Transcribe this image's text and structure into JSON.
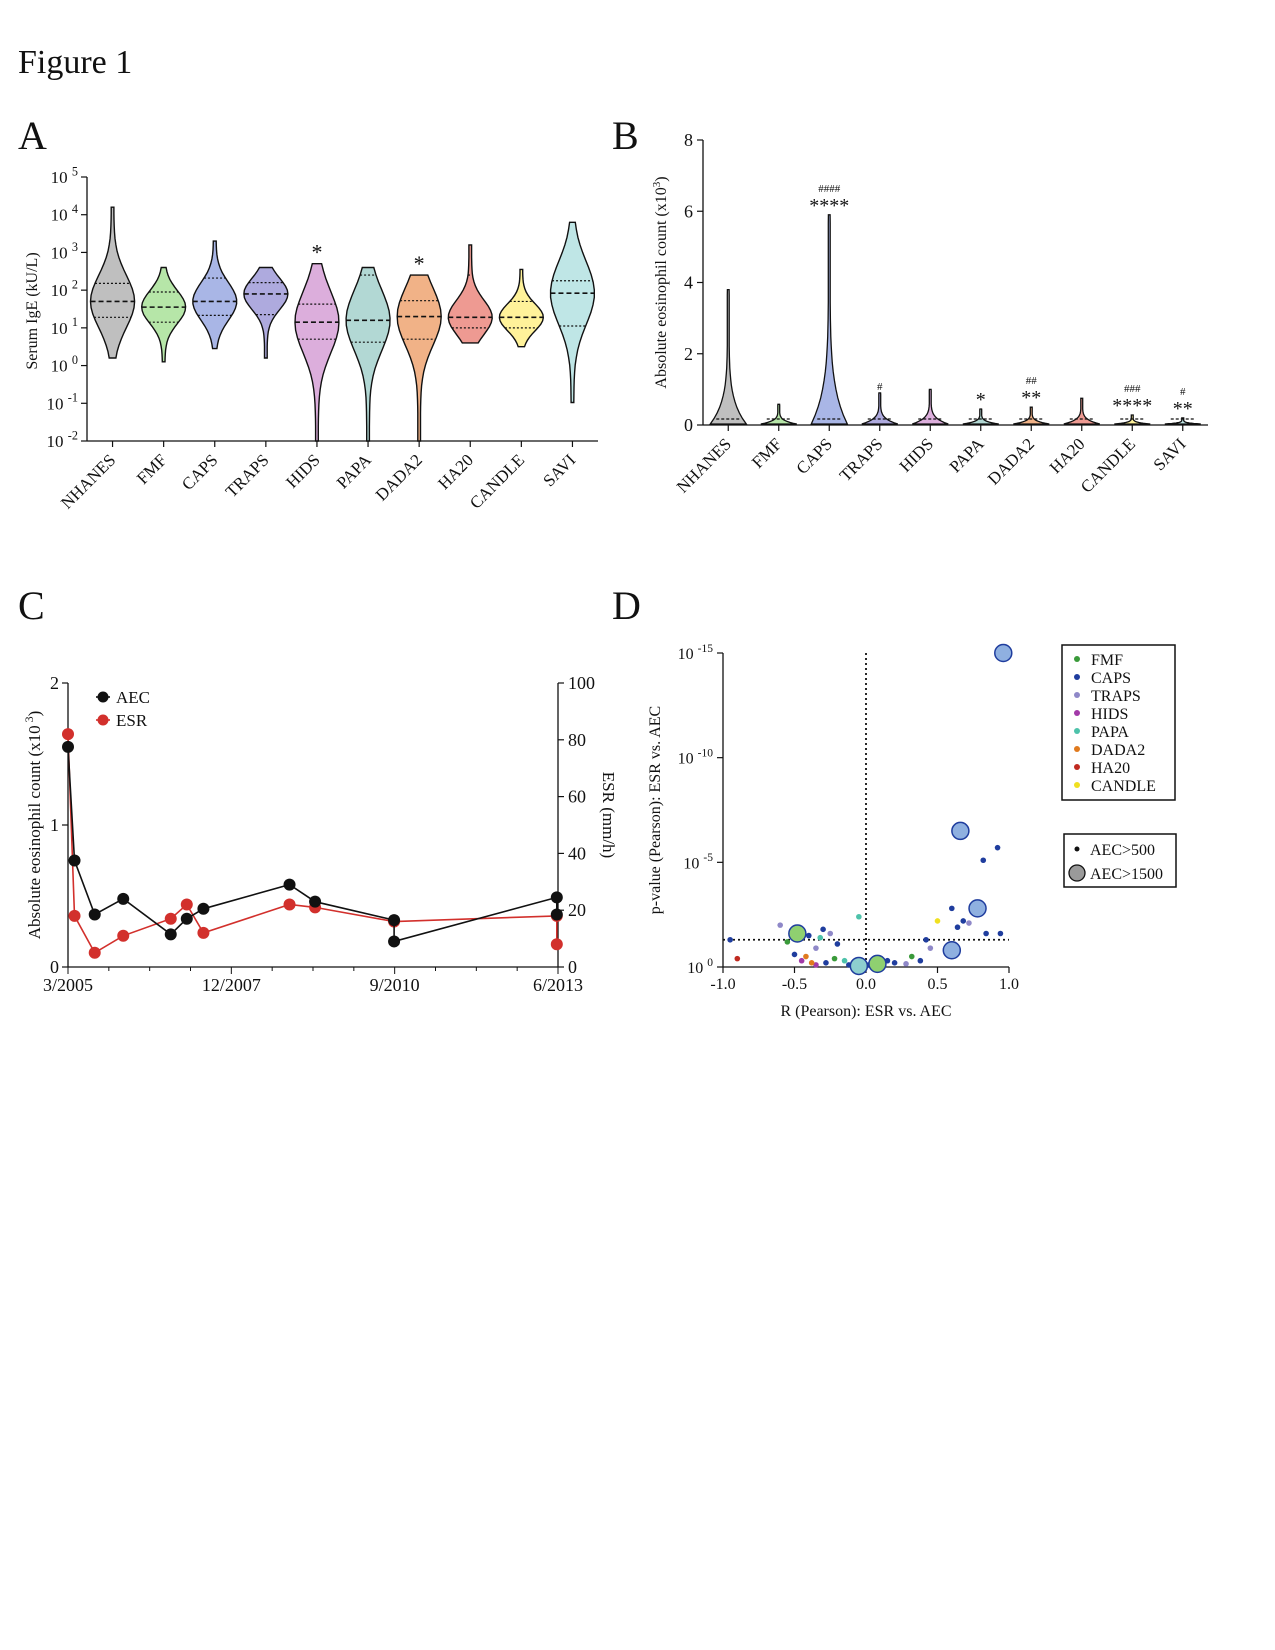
{
  "figure_title": "Figure 1",
  "panel_labels": {
    "a": "A",
    "b": "B",
    "c": "C",
    "d": "D"
  },
  "colors": {
    "groups": [
      "#bfbfbf",
      "#b6e6a8",
      "#a9b6e6",
      "#aeaade",
      "#dcaedc",
      "#b2d8d4",
      "#f1b287",
      "#ee9a92",
      "#fff29a",
      "#bfe6e6"
    ],
    "aec_line": "#111111",
    "esr_line": "#d2302c",
    "legend_dots": [
      "#3a9a3a",
      "#1f3d9e",
      "#8f88c8",
      "#a23aa8",
      "#4dc2aa",
      "#e07a1e",
      "#c02a20",
      "#f0e020"
    ],
    "big_marker_fill": "#8fb0e0"
  },
  "chart_data": [
    {
      "panel": "A",
      "type": "violin",
      "ylabel": "Serum IgE (kU/L)",
      "yscale": "log",
      "yticks": [
        {
          "base": "10",
          "exp": "5"
        },
        {
          "base": "10",
          "exp": "4"
        },
        {
          "base": "10",
          "exp": "3"
        },
        {
          "base": "10",
          "exp": "2"
        },
        {
          "base": "10",
          "exp": "1"
        },
        {
          "base": "10",
          "exp": "0"
        },
        {
          "base": "10",
          "exp": "-1"
        },
        {
          "base": "10",
          "exp": "-2"
        }
      ],
      "ylim_log10": [
        -2,
        5
      ],
      "categories": [
        "NHANES",
        "FMF",
        "CAPS",
        "TRAPS",
        "HIDS",
        "PAPA",
        "DADA2",
        "HA20",
        "CANDLE",
        "SAVI"
      ],
      "log10_min": [
        0.2,
        0.1,
        0.45,
        0.2,
        -2,
        -2,
        -2,
        0.6,
        0.5,
        -0.98
      ],
      "log10_max": [
        4.2,
        2.6,
        3.3,
        2.6,
        2.7,
        2.6,
        2.4,
        3.2,
        2.55,
        3.8
      ],
      "log10_q1": [
        1.28,
        1.15,
        1.33,
        1.35,
        0.7,
        0.62,
        0.7,
        1.0,
        1.0,
        1.05
      ],
      "log10_median": [
        1.7,
        1.55,
        1.7,
        1.9,
        1.15,
        1.2,
        1.3,
        1.28,
        1.28,
        1.92
      ],
      "log10_q3": [
        2.18,
        1.95,
        2.32,
        2.2,
        1.63,
        2.4,
        1.72,
        2.4,
        1.7,
        2.25
      ],
      "significance": [
        "",
        "",
        "",
        "",
        "*",
        "",
        "*",
        "",
        "",
        ""
      ]
    },
    {
      "panel": "B",
      "type": "violin",
      "ylabel": "Absolute eosinophil count (x10",
      "ylabel_sup": "3",
      "ylabel_close": ")",
      "yticks": [
        0,
        2,
        4,
        6,
        8
      ],
      "ylim": [
        0,
        8
      ],
      "categories": [
        "NHANES",
        "FMF",
        "CAPS",
        "TRAPS",
        "HIDS",
        "PAPA",
        "DADA2",
        "HA20",
        "CANDLE",
        "SAVI"
      ],
      "max": [
        3.8,
        0.58,
        5.9,
        0.9,
        1.0,
        0.45,
        0.5,
        0.75,
        0.28,
        0.2
      ],
      "significance_star": [
        "",
        "",
        "****",
        "",
        "",
        "*",
        "**",
        "",
        "****",
        "**"
      ],
      "significance_hash": [
        "",
        "",
        "####",
        "#",
        "",
        "",
        "##",
        "",
        "###",
        "#"
      ]
    },
    {
      "panel": "C",
      "type": "line",
      "ylabel_left": "Absolute eosinophil count (x10",
      "ylabel_left_sup": "3",
      "ylabel_left_close": ")",
      "ylabel_right": "ESR (mm/h)",
      "yticks_left": [
        0,
        1,
        2
      ],
      "yticks_right": [
        0,
        20,
        40,
        60,
        80,
        100
      ],
      "ylim_left": [
        0,
        2
      ],
      "ylim_right": [
        0,
        100
      ],
      "x_ticklabels": [
        "3/2005",
        "12/2007",
        "9/2010",
        "6/2013"
      ],
      "x_tick_years": [
        2005.17,
        2007.92,
        2010.67,
        2013.42
      ],
      "xlim_years": [
        2005.17,
        2013.42
      ],
      "series": [
        {
          "name": "AEC",
          "x": [
            2005.17,
            2005.28,
            2005.62,
            2006.1,
            2006.9,
            2007.17,
            2007.45,
            2008.9,
            2009.33,
            2010.66,
            2010.66,
            2013.4,
            2013.4
          ],
          "y": [
            1.55,
            0.75,
            0.37,
            0.48,
            0.23,
            0.34,
            0.41,
            0.58,
            0.46,
            0.33,
            0.18,
            0.49,
            0.37
          ]
        },
        {
          "name": "ESR",
          "x": [
            2005.17,
            2005.28,
            2005.62,
            2006.1,
            2006.9,
            2007.17,
            2007.45,
            2008.9,
            2009.33,
            2010.66,
            2013.4,
            2013.4
          ],
          "y": [
            82,
            18,
            5,
            11,
            17,
            22,
            12,
            22,
            21,
            16,
            18,
            8
          ]
        }
      ]
    },
    {
      "panel": "D",
      "type": "scatter",
      "xlabel": "R (Pearson): ESR vs. AEC",
      "ylabel": "p-value (Pearson): ESR vs. AEC",
      "xticks": [
        "-1.0",
        "-0.5",
        "0.0",
        "0.5",
        "1.0"
      ],
      "xtick_values": [
        -1,
        -0.5,
        0,
        0.5,
        1
      ],
      "yticks": [
        {
          "base": "10",
          "exp": "-15",
          "value": 15
        },
        {
          "base": "10",
          "exp": "-10",
          "value": 10
        },
        {
          "base": "10",
          "exp": "-5",
          "value": 5
        },
        {
          "base": "10",
          "exp": "0",
          "value": 0
        }
      ],
      "xlim": [
        -1,
        1
      ],
      "ylim_neglog10p": [
        0,
        15
      ],
      "threshold_neglog10p": 1.3,
      "legend_groups": [
        "FMF",
        "CAPS",
        "TRAPS",
        "HIDS",
        "PAPA",
        "DADA2",
        "HA20",
        "CANDLE"
      ],
      "legend_sizes": [
        "AEC>500",
        "AEC>1500"
      ],
      "small_points": [
        {
          "g": 1,
          "r": -0.95,
          "p": 1.3
        },
        {
          "g": 6,
          "r": -0.9,
          "p": 0.4
        },
        {
          "g": 2,
          "r": -0.6,
          "p": 2.0
        },
        {
          "g": 0,
          "r": -0.55,
          "p": 1.2
        },
        {
          "g": 1,
          "r": -0.5,
          "p": 0.6
        },
        {
          "g": 3,
          "r": -0.45,
          "p": 0.3
        },
        {
          "g": 5,
          "r": -0.42,
          "p": 0.5
        },
        {
          "g": 1,
          "r": -0.4,
          "p": 1.5
        },
        {
          "g": 2,
          "r": -0.35,
          "p": 0.9
        },
        {
          "g": 4,
          "r": -0.32,
          "p": 1.4
        },
        {
          "g": 1,
          "r": -0.3,
          "p": 1.8
        },
        {
          "g": 1,
          "r": -0.28,
          "p": 0.2
        },
        {
          "g": 2,
          "r": -0.25,
          "p": 1.6
        },
        {
          "g": 0,
          "r": -0.22,
          "p": 0.4
        },
        {
          "g": 1,
          "r": -0.2,
          "p": 1.1
        },
        {
          "g": 4,
          "r": -0.15,
          "p": 0.3
        },
        {
          "g": 1,
          "r": -0.12,
          "p": 0.1
        },
        {
          "g": 4,
          "r": -0.05,
          "p": 2.4
        },
        {
          "g": 1,
          "r": 0.02,
          "p": 0.1
        },
        {
          "g": 1,
          "r": 0.05,
          "p": 0.2
        },
        {
          "g": 2,
          "r": 0.1,
          "p": 0.05
        },
        {
          "g": 1,
          "r": 0.15,
          "p": 0.3
        },
        {
          "g": 1,
          "r": 0.2,
          "p": 0.2
        },
        {
          "g": 2,
          "r": 0.28,
          "p": 0.15
        },
        {
          "g": 0,
          "r": 0.32,
          "p": 0.5
        },
        {
          "g": 1,
          "r": 0.38,
          "p": 0.3
        },
        {
          "g": 1,
          "r": 0.42,
          "p": 1.3
        },
        {
          "g": 2,
          "r": 0.45,
          "p": 0.9
        },
        {
          "g": 7,
          "r": 0.5,
          "p": 2.2
        },
        {
          "g": 1,
          "r": 0.6,
          "p": 2.8
        },
        {
          "g": 1,
          "r": 0.64,
          "p": 1.9
        },
        {
          "g": 1,
          "r": 0.68,
          "p": 2.2
        },
        {
          "g": 2,
          "r": 0.72,
          "p": 2.1
        },
        {
          "g": 1,
          "r": 0.82,
          "p": 5.1
        },
        {
          "g": 1,
          "r": 0.84,
          "p": 1.6
        },
        {
          "g": 1,
          "r": 0.92,
          "p": 5.7
        },
        {
          "g": 1,
          "r": 0.94,
          "p": 1.6
        },
        {
          "g": 3,
          "r": -0.35,
          "p": 0.1
        },
        {
          "g": 5,
          "r": -0.38,
          "p": 0.2
        }
      ],
      "big_points": [
        {
          "color": "#8fd070",
          "r": -0.48,
          "p": 1.6
        },
        {
          "color": "#8fd070",
          "r": 0.08,
          "p": 0.15
        },
        {
          "color": "#8ecfcf",
          "r": -0.05,
          "p": 0.05
        },
        {
          "color": "#8fb0e0",
          "r": 0.6,
          "p": 0.8
        },
        {
          "color": "#8fb0e0",
          "r": 0.66,
          "p": 6.5
        },
        {
          "color": "#8fb0e0",
          "r": 0.78,
          "p": 2.8
        },
        {
          "color": "#8fb0e0",
          "r": 0.96,
          "p": 15
        }
      ]
    }
  ]
}
